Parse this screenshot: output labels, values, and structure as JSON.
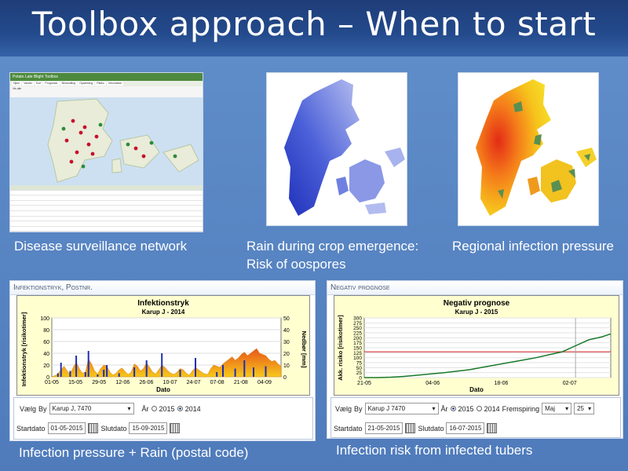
{
  "slide": {
    "title": "Toolbox approach – When to start"
  },
  "captions": {
    "surveillance": "Disease surveillance network",
    "rain_line1": "Rain during crop emergence:",
    "rain_line2": "Risk of oospores",
    "regional": "Regional infection pressure",
    "infection_pressure": "Infection pressure + Rain (postal code)",
    "infection_risk": "Infection risk from infected tubers"
  },
  "surveillance_app": {
    "header": "Potato Late Blight Toolbox",
    "nav": [
      "Hjem",
      "Varsler",
      "Kort",
      "Prognoser",
      "Behandling",
      "Opsætning",
      "Risiko",
      "Information"
    ],
    "filter_label": "Vis alle"
  },
  "infektionstryk": {
    "window_title": "Infektionstryk, Postnr.",
    "form": {
      "select_label": "Vælg",
      "by_label": "By",
      "by_value": "Karup J, 7470",
      "year_label": "År",
      "year_option_1": "2015",
      "year_option_2": "2014",
      "year_selected": "2014",
      "start_label": "Startdato",
      "start_value": "01-05-2015",
      "end_label": "Slutdato",
      "end_value": "15-09-2015"
    }
  },
  "negativ": {
    "window_title": "Negativ prognose",
    "form": {
      "select_label": "Vælg",
      "by_label": "By",
      "by_value": "Karup J 7470",
      "year_label": "År",
      "year_option_1": "2015",
      "year_option_2": "2014",
      "year_selected": "2015",
      "emergence_label": "Fremspiring",
      "month_value": "Maj",
      "day_value": "25",
      "start_label": "Startdato",
      "start_value": "21-05-2015",
      "end_label": "Slutdato",
      "end_value": "16-07-2015"
    }
  },
  "chart_data": [
    {
      "type": "bar",
      "title": "Infektionstryk",
      "subtitle": "Karup J - 2014",
      "xlabel": "Dato",
      "ylabel": "Infektionstryk [risikotimer]",
      "y2label": "Nedbør [mm]",
      "ylim": [
        0,
        100
      ],
      "y2lim": [
        0,
        50
      ],
      "yticks": [
        0,
        20,
        40,
        60,
        80,
        100
      ],
      "y2ticks": [
        0,
        10,
        20,
        30,
        40,
        50
      ],
      "xticks": [
        "01-05",
        "15-05",
        "29-05",
        "12-06",
        "26-06",
        "10-07",
        "24-07",
        "07-08",
        "21-08",
        "04-09"
      ],
      "series": [
        {
          "values": [
            0,
            2,
            5,
            12,
            18,
            10,
            4,
            16,
            25,
            14,
            6,
            8,
            30,
            22,
            10,
            5,
            14,
            20,
            18,
            8,
            3,
            6,
            12,
            15,
            9,
            4,
            8,
            22,
            18,
            10,
            14,
            24,
            16,
            8,
            5,
            12,
            20,
            16,
            10,
            6,
            4,
            8,
            14,
            12,
            6,
            3,
            10,
            16,
            12,
            8,
            5,
            4,
            14,
            20,
            18,
            16,
            22,
            26,
            30,
            34,
            28,
            32,
            38,
            42,
            36,
            40,
            44,
            48,
            40,
            38,
            36,
            30,
            26,
            28,
            22,
            18
          ]
        },
        {
          "values": [
            0,
            0,
            3,
            12,
            0,
            0,
            5,
            0,
            18,
            0,
            0,
            4,
            22,
            0,
            0,
            2,
            0,
            6,
            10,
            0,
            0,
            0,
            3,
            0,
            0,
            0,
            0,
            8,
            0,
            0,
            0,
            14,
            0,
            0,
            0,
            0,
            20,
            0,
            0,
            0,
            0,
            0,
            6,
            0,
            0,
            0,
            0,
            16,
            0,
            0,
            0,
            0,
            0,
            0,
            4,
            0,
            10,
            0,
            0,
            0,
            7,
            0,
            0,
            14,
            0,
            0,
            8,
            0,
            0,
            0,
            9,
            0,
            0,
            0,
            0,
            0
          ]
        }
      ]
    },
    {
      "type": "line",
      "title": "Negativ prognose",
      "subtitle": "Karup J - 2015",
      "xlabel": "Dato",
      "ylabel": "Akk. risiko [risikotimer]",
      "ylim": [
        0,
        300
      ],
      "yticks": [
        0,
        25,
        50,
        75,
        100,
        125,
        150,
        175,
        200,
        225,
        250,
        275,
        300
      ],
      "xticks": [
        "21-05",
        "04-06",
        "18-06",
        "02-07"
      ],
      "threshold": 130,
      "x": [
        0,
        3,
        6,
        9,
        12,
        15,
        18,
        21,
        24,
        27,
        30,
        33,
        36,
        39,
        42,
        45,
        48,
        51,
        54,
        56
      ],
      "values": [
        0,
        0,
        2,
        6,
        12,
        18,
        24,
        32,
        40,
        52,
        64,
        76,
        88,
        100,
        115,
        130,
        160,
        190,
        205,
        220
      ]
    }
  ]
}
